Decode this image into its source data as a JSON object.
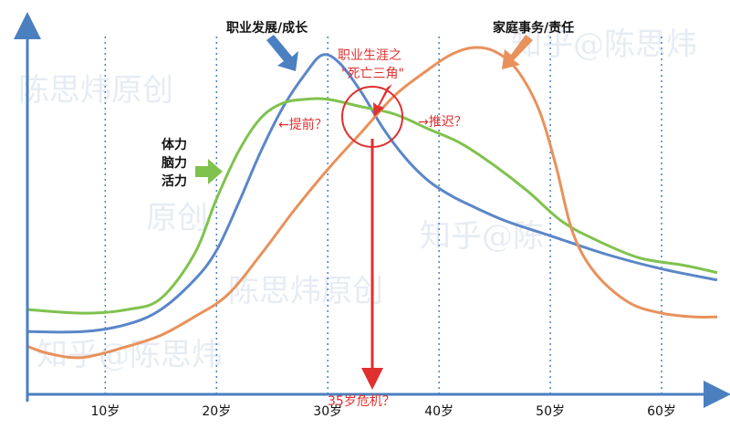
{
  "chart_data": {
    "type": "line",
    "title": "",
    "xlabel": "",
    "ylabel": "",
    "xlim": [
      3,
      65
    ],
    "ylim": [
      0,
      100
    ],
    "ticks": [
      {
        "x": 10,
        "label": "10岁"
      },
      {
        "x": 20,
        "label": "20岁"
      },
      {
        "x": 30,
        "label": "30岁"
      },
      {
        "x": 40,
        "label": "40岁"
      },
      {
        "x": 50,
        "label": "50岁"
      },
      {
        "x": 60,
        "label": "60岁"
      }
    ],
    "grid": "vertical dotted at each tick",
    "series": [
      {
        "name": "职业发展/成长",
        "color": "#5b86c8",
        "points": [
          [
            3,
            17
          ],
          [
            8,
            17
          ],
          [
            12,
            19
          ],
          [
            15,
            23
          ],
          [
            18,
            31
          ],
          [
            20,
            39
          ],
          [
            22,
            52
          ],
          [
            24,
            66
          ],
          [
            26,
            78
          ],
          [
            28,
            87
          ],
          [
            29.5,
            92
          ],
          [
            31,
            90
          ],
          [
            33,
            82
          ],
          [
            35,
            72
          ],
          [
            37,
            64
          ],
          [
            39,
            58
          ],
          [
            41,
            54
          ],
          [
            43,
            51
          ],
          [
            46,
            47
          ],
          [
            50,
            43
          ],
          [
            55,
            38
          ],
          [
            60,
            34
          ],
          [
            65,
            31
          ]
        ]
      },
      {
        "name": "体力 脑力 活力",
        "color": "#7fc24d",
        "points": [
          [
            3,
            23
          ],
          [
            8,
            22
          ],
          [
            12,
            23
          ],
          [
            15,
            26
          ],
          [
            18,
            38
          ],
          [
            20,
            53
          ],
          [
            22,
            66
          ],
          [
            24,
            75
          ],
          [
            26,
            79
          ],
          [
            28,
            80
          ],
          [
            30,
            80
          ],
          [
            33,
            78
          ],
          [
            36,
            76
          ],
          [
            39,
            72
          ],
          [
            42,
            68
          ],
          [
            45,
            62
          ],
          [
            48,
            55
          ],
          [
            51,
            47
          ],
          [
            54,
            42
          ],
          [
            58,
            37
          ],
          [
            62,
            35
          ],
          [
            65,
            33
          ]
        ]
      },
      {
        "name": "家庭事务/责任",
        "color": "#e8915b",
        "points": [
          [
            3,
            13
          ],
          [
            5,
            11
          ],
          [
            8,
            10
          ],
          [
            12,
            13
          ],
          [
            15,
            16
          ],
          [
            18,
            21
          ],
          [
            21,
            27
          ],
          [
            24,
            38
          ],
          [
            27,
            50
          ],
          [
            30,
            61
          ],
          [
            33,
            71
          ],
          [
            36,
            81
          ],
          [
            39,
            88
          ],
          [
            41,
            92
          ],
          [
            43,
            94
          ],
          [
            45,
            93
          ],
          [
            47,
            88
          ],
          [
            49,
            77
          ],
          [
            50.5,
            62
          ],
          [
            52,
            44
          ],
          [
            54,
            33
          ],
          [
            57,
            25
          ],
          [
            60,
            22
          ],
          [
            63,
            21
          ],
          [
            65,
            21
          ]
        ]
      }
    ]
  },
  "labels": {
    "career": "职业发展/成长",
    "family": "家庭事务/责任",
    "energy_1": "体力",
    "energy_2": "脑力",
    "energy_3": "活力",
    "triangle_1": "职业生涯之",
    "triangle_2": "\"死亡三角\"",
    "earlier": "←提前？",
    "later": "→推迟？",
    "crisis": "35岁危机？"
  },
  "colors": {
    "axis": "#4a80c0",
    "annotation": "#e03030",
    "watermark": "#c9d6e6"
  },
  "watermark": [
    "陈思炜原创",
    "知乎@陈思炜",
    "原创",
    "知乎@陈",
    "陈思炜原创",
    "知乎@陈思炜"
  ]
}
